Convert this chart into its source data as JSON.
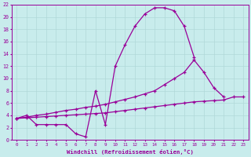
{
  "xlabel": "Windchill (Refroidissement éolien,°C)",
  "background_color": "#c8ecec",
  "grid_color": "#b0d8d8",
  "line_color": "#990099",
  "xlim": [
    -0.5,
    23.5
  ],
  "ylim": [
    0,
    22
  ],
  "xticks": [
    0,
    1,
    2,
    3,
    4,
    5,
    6,
    7,
    8,
    9,
    10,
    11,
    12,
    13,
    14,
    15,
    16,
    17,
    18,
    19,
    20,
    21,
    22,
    23
  ],
  "yticks": [
    0,
    2,
    4,
    6,
    8,
    10,
    12,
    14,
    16,
    18,
    20,
    22
  ],
  "series1_x": [
    0,
    1,
    2,
    3,
    4,
    5,
    6,
    7,
    8,
    9,
    10,
    11,
    12,
    13,
    14,
    15,
    16,
    17,
    18
  ],
  "series1_y": [
    3.5,
    4.0,
    2.5,
    2.5,
    2.5,
    2.5,
    1.0,
    0.5,
    8.0,
    2.5,
    12.0,
    15.5,
    18.5,
    20.5,
    21.5,
    21.5,
    21.0,
    18.5,
    13.5
  ],
  "series2_x": [
    0,
    1,
    2,
    3,
    4,
    5,
    6,
    7,
    8,
    9,
    10,
    11,
    12,
    13,
    14,
    15,
    16,
    17,
    18,
    19,
    20,
    21
  ],
  "series2_y": [
    3.5,
    3.7,
    4.0,
    4.2,
    4.5,
    4.8,
    5.0,
    5.3,
    5.5,
    5.8,
    6.2,
    6.6,
    7.0,
    7.5,
    8.0,
    9.0,
    10.0,
    11.0,
    13.0,
    11.0,
    8.5,
    7.0
  ],
  "series3_x": [
    0,
    1,
    2,
    3,
    4,
    5,
    6,
    7,
    8,
    9,
    10,
    11,
    12,
    13,
    14,
    15,
    16,
    17,
    18,
    19,
    20,
    21,
    22,
    23
  ],
  "series3_y": [
    3.5,
    3.6,
    3.7,
    3.8,
    3.9,
    4.0,
    4.1,
    4.2,
    4.3,
    4.4,
    4.6,
    4.8,
    5.0,
    5.2,
    5.4,
    5.6,
    5.8,
    6.0,
    6.2,
    6.3,
    6.4,
    6.5,
    7.0,
    7.0
  ]
}
